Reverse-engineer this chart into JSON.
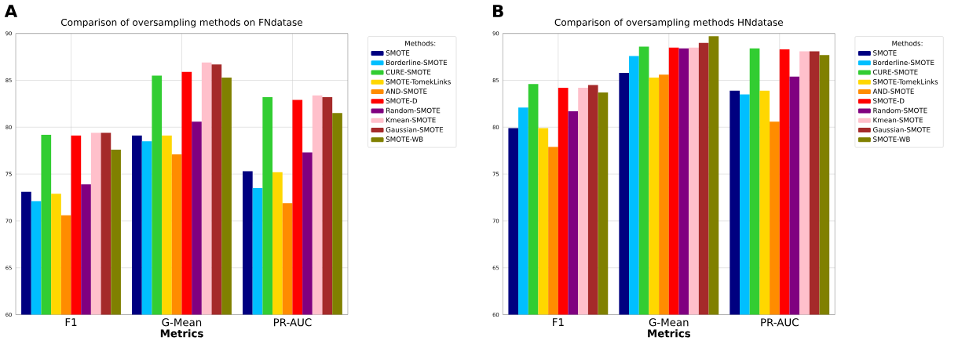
{
  "chart_data": [
    {
      "type": "bar",
      "title": "Comparison of oversampling methods on FNdatase",
      "xlabel": "Metrics",
      "legend_title": "Methods:",
      "annotations": [
        "A"
      ],
      "categories": [
        "F1",
        "G-Mean",
        "PR-AUC"
      ],
      "ylim": [
        60,
        90
      ],
      "yticks": [
        60,
        65,
        70,
        75,
        80,
        85,
        90
      ],
      "grid": true,
      "legend": "right",
      "series": [
        {
          "name": "SMOTE",
          "color": "#000080",
          "values": [
            73.1,
            79.1,
            75.3
          ]
        },
        {
          "name": "Borderline-SMOTE",
          "color": "#00bfff",
          "values": [
            72.1,
            78.5,
            73.5
          ]
        },
        {
          "name": "CURE-SMOTE",
          "color": "#32cd32",
          "values": [
            79.2,
            85.5,
            83.2
          ]
        },
        {
          "name": "SMOTE-TomekLinks",
          "color": "#ffd700",
          "values": [
            72.9,
            79.1,
            75.2
          ]
        },
        {
          "name": "AND-SMOTE",
          "color": "#ff8c00",
          "values": [
            70.6,
            77.1,
            71.9
          ]
        },
        {
          "name": "SMOTE-D",
          "color": "#ff0000",
          "values": [
            79.1,
            85.9,
            82.9
          ]
        },
        {
          "name": "Random-SMOTE",
          "color": "#800080",
          "values": [
            73.9,
            80.6,
            77.3
          ]
        },
        {
          "name": "Kmean-SMOTE",
          "color": "#ffc0cb",
          "values": [
            79.4,
            86.9,
            83.4
          ]
        },
        {
          "name": "Gaussian-SMOTE",
          "color": "#a52a2a",
          "values": [
            79.4,
            86.7,
            83.2
          ]
        },
        {
          "name": "SMOTE-WB",
          "color": "#808000",
          "values": [
            77.6,
            85.3,
            81.5
          ]
        }
      ]
    },
    {
      "type": "bar",
      "title": "Comparison of oversampling methods HNdatase",
      "xlabel": "Metrics",
      "legend_title": "Methods:",
      "annotations": [
        "B"
      ],
      "categories": [
        "F1",
        "G-Mean",
        "PR-AUC"
      ],
      "ylim": [
        60,
        90
      ],
      "yticks": [
        60,
        65,
        70,
        75,
        80,
        85,
        90
      ],
      "grid": true,
      "legend": "right",
      "series": [
        {
          "name": "SMOTE",
          "color": "#000080",
          "values": [
            79.9,
            85.8,
            83.9
          ]
        },
        {
          "name": "Borderline-SMOTE",
          "color": "#00bfff",
          "values": [
            82.1,
            87.6,
            83.5
          ]
        },
        {
          "name": "CURE-SMOTE",
          "color": "#32cd32",
          "values": [
            84.6,
            88.6,
            88.4
          ]
        },
        {
          "name": "SMOTE-TomekLinks",
          "color": "#ffd700",
          "values": [
            79.9,
            85.3,
            83.9
          ]
        },
        {
          "name": "AND-SMOTE",
          "color": "#ff8c00",
          "values": [
            77.9,
            85.6,
            80.6
          ]
        },
        {
          "name": "SMOTE-D",
          "color": "#ff0000",
          "values": [
            84.2,
            88.5,
            88.3
          ]
        },
        {
          "name": "Random-SMOTE",
          "color": "#800080",
          "values": [
            81.7,
            88.4,
            85.4
          ]
        },
        {
          "name": "Kmean-SMOTE",
          "color": "#ffc0cb",
          "values": [
            84.2,
            88.5,
            88.1
          ]
        },
        {
          "name": "Gaussian-SMOTE",
          "color": "#a52a2a",
          "values": [
            84.5,
            89.0,
            88.1
          ]
        },
        {
          "name": "SMOTE-WB",
          "color": "#808000",
          "values": [
            83.7,
            89.7,
            87.7
          ]
        }
      ]
    }
  ]
}
